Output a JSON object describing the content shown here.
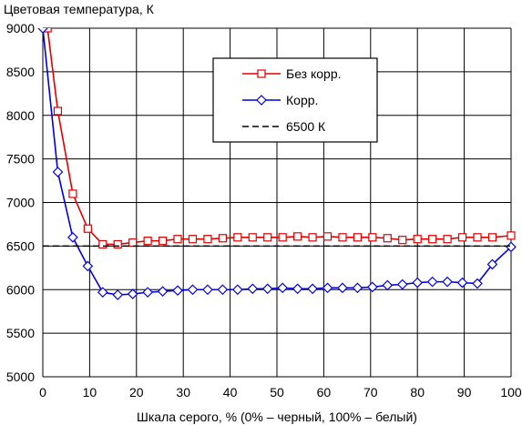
{
  "chart_data": {
    "type": "line",
    "title": "",
    "ylabel": "Цветовая температура, К",
    "xlabel": "Шкала серого, % (0% – черный, 100% – белый)",
    "xlim": [
      0,
      100
    ],
    "ylim": [
      5000,
      9000
    ],
    "x_ticks": [
      0,
      10,
      20,
      30,
      40,
      50,
      60,
      70,
      80,
      90,
      100
    ],
    "y_ticks": [
      5000,
      5500,
      6000,
      6500,
      7000,
      7500,
      8000,
      8500,
      9000
    ],
    "grid": true,
    "legend_position": "upper-center",
    "series": [
      {
        "name": "Без корр.",
        "color": "#e00000",
        "marker": "square",
        "x": [
          1,
          3.2,
          6.4,
          9.6,
          12.8,
          16,
          19.2,
          22.4,
          25.6,
          28.8,
          32,
          35.2,
          38.4,
          41.6,
          44.8,
          48,
          51.2,
          54.4,
          57.6,
          60.8,
          64,
          67.2,
          70.4,
          73.6,
          76.8,
          80,
          83.2,
          86.4,
          89.6,
          92.8,
          96,
          100
        ],
        "y": [
          9000,
          8050,
          7100,
          6700,
          6520,
          6520,
          6540,
          6560,
          6560,
          6580,
          6580,
          6580,
          6590,
          6600,
          6600,
          6600,
          6600,
          6610,
          6600,
          6610,
          6600,
          6600,
          6600,
          6590,
          6570,
          6580,
          6580,
          6580,
          6600,
          6600,
          6600,
          6620
        ]
      },
      {
        "name": "Корр.",
        "color": "#0000e0",
        "marker": "diamond",
        "x": [
          0,
          3.2,
          6.4,
          9.6,
          12.8,
          16,
          19.2,
          22.4,
          25.6,
          28.8,
          32,
          35.2,
          38.4,
          41.6,
          44.8,
          48,
          51.2,
          54.4,
          57.6,
          60.8,
          64,
          67.2,
          70.4,
          73.6,
          76.8,
          80,
          83.2,
          86.4,
          89.6,
          92.8,
          96,
          100
        ],
        "y": [
          9000,
          7350,
          6600,
          6270,
          5970,
          5940,
          5950,
          5970,
          5980,
          5990,
          6000,
          6000,
          6000,
          6000,
          6010,
          6010,
          6020,
          6010,
          6010,
          6020,
          6020,
          6020,
          6030,
          6050,
          6060,
          6080,
          6090,
          6090,
          6080,
          6070,
          6290,
          6490
        ]
      },
      {
        "name": "6500 К",
        "color": "#000000",
        "style": "dashed",
        "x": [
          0,
          100
        ],
        "y": [
          6500,
          6500
        ]
      }
    ]
  }
}
